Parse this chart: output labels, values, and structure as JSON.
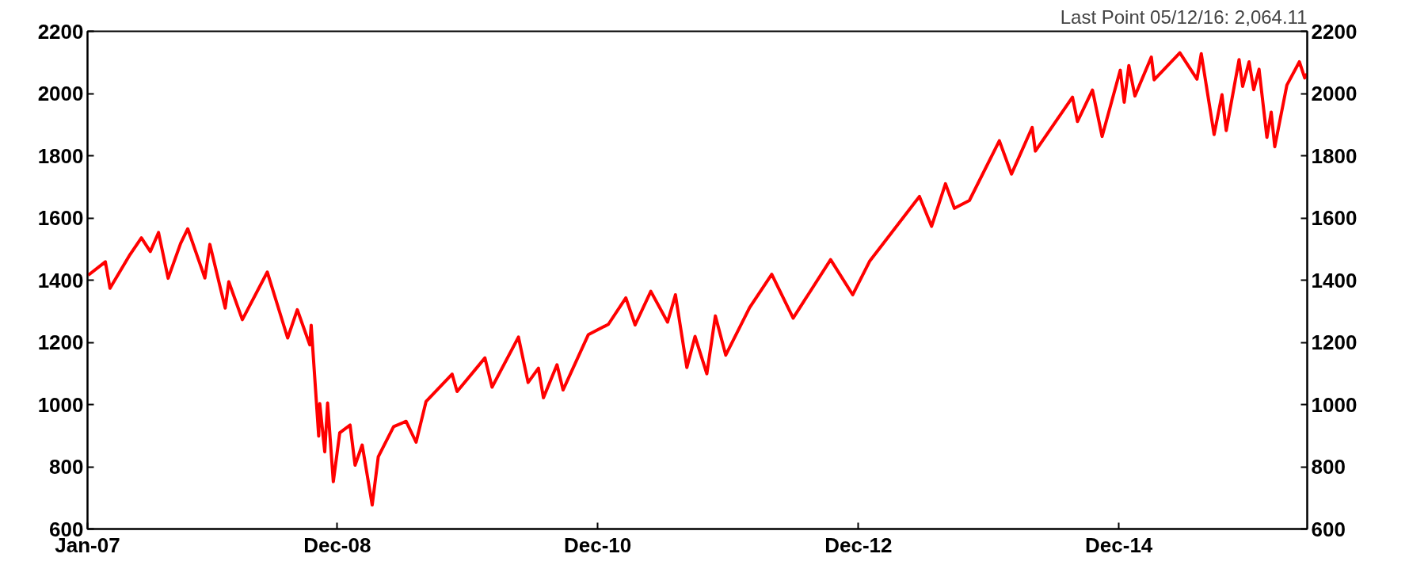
{
  "chart_data": {
    "type": "line",
    "annotations": [
      "Last Point 05/12/16: 2,064.11"
    ],
    "x": [
      "2007-01-03",
      "2007-02-20",
      "2007-03-05",
      "2007-04-30",
      "2007-06-01",
      "2007-06-26",
      "2007-07-19",
      "2007-08-15",
      "2007-09-19",
      "2007-10-09",
      "2007-11-26",
      "2007-12-10",
      "2008-01-22",
      "2008-02-01",
      "2008-03-10",
      "2008-05-19",
      "2008-07-15",
      "2008-08-11",
      "2008-09-15",
      "2008-09-19",
      "2008-10-10",
      "2008-10-13",
      "2008-10-27",
      "2008-11-04",
      "2008-11-20",
      "2008-12-08",
      "2009-01-06",
      "2009-01-20",
      "2009-02-09",
      "2009-03-09",
      "2009-03-26",
      "2009-05-08",
      "2009-06-12",
      "2009-07-10",
      "2009-08-07",
      "2009-10-19",
      "2009-11-02",
      "2010-01-19",
      "2010-02-08",
      "2010-04-23",
      "2010-05-20",
      "2010-06-18",
      "2010-07-02",
      "2010-08-09",
      "2010-08-26",
      "2010-11-05",
      "2010-12-31",
      "2011-02-18",
      "2011-03-16",
      "2011-04-29",
      "2011-06-15",
      "2011-07-07",
      "2011-08-08",
      "2011-08-31",
      "2011-10-03",
      "2011-10-27",
      "2011-11-25",
      "2012-01-31",
      "2012-04-02",
      "2012-06-01",
      "2012-09-14",
      "2012-11-15",
      "2013-01-02",
      "2013-05-21",
      "2013-06-24",
      "2013-08-02",
      "2013-08-27",
      "2013-10-08",
      "2013-12-31",
      "2014-02-03",
      "2014-04-02",
      "2014-04-11",
      "2014-07-24",
      "2014-08-07",
      "2014-09-18",
      "2014-10-15",
      "2014-12-05",
      "2014-12-16",
      "2014-12-29",
      "2015-01-15",
      "2015-03-02",
      "2015-03-10",
      "2015-05-21",
      "2015-07-08",
      "2015-07-20",
      "2015-08-25",
      "2015-09-16",
      "2015-09-28",
      "2015-11-03",
      "2015-11-13",
      "2015-12-01",
      "2015-12-14",
      "2015-12-29",
      "2016-01-20",
      "2016-02-01",
      "2016-02-11",
      "2016-03-16",
      "2016-04-20",
      "2016-05-05",
      "2016-05-12"
    ],
    "series": [
      {
        "color": "#ff0000",
        "values": [
          1416,
          1459,
          1374,
          1482,
          1536,
          1492,
          1553,
          1406,
          1518,
          1565,
          1407,
          1515,
          1310,
          1395,
          1273,
          1426,
          1214,
          1305,
          1192,
          1255,
          899,
          1003,
          848,
          1005,
          752,
          909,
          934,
          805,
          870,
          677,
          832,
          929,
          946,
          879,
          1010,
          1098,
          1042,
          1150,
          1056,
          1217,
          1071,
          1117,
          1022,
          1128,
          1047,
          1225,
          1258,
          1343,
          1256,
          1364,
          1265,
          1353,
          1119,
          1219,
          1099,
          1285,
          1159,
          1312,
          1419,
          1278,
          1466,
          1353,
          1462,
          1669,
          1573,
          1710,
          1631,
          1656,
          1848,
          1741,
          1891,
          1815,
          1988,
          1910,
          2011,
          1862,
          2075,
          1972,
          2090,
          1992,
          2117,
          2044,
          2131,
          2046,
          2128,
          1868,
          1996,
          1881,
          2109,
          2023,
          2102,
          2012,
          2078,
          1859,
          1940,
          1829,
          2027,
          2102,
          2050,
          2064
        ]
      }
    ],
    "xlim": [
      "2007-01-01",
      "2016-05-12"
    ],
    "xticks": [
      {
        "value": "2007-01-01",
        "label": "Jan-07"
      },
      {
        "value": "2008-12-01",
        "label": "Dec-08"
      },
      {
        "value": "2010-12-01",
        "label": "Dec-10"
      },
      {
        "value": "2012-12-01",
        "label": "Dec-12"
      },
      {
        "value": "2014-12-01",
        "label": "Dec-14"
      }
    ],
    "ylim": [
      600,
      2200
    ],
    "yticks": [
      600,
      800,
      1000,
      1200,
      1400,
      1600,
      1800,
      2000,
      2200
    ],
    "y2lim": [
      600,
      2200
    ],
    "y2ticks": [
      600,
      800,
      1000,
      1200,
      1400,
      1600,
      1800,
      2000,
      2200
    ],
    "marker": "none",
    "line_style": "solid"
  }
}
